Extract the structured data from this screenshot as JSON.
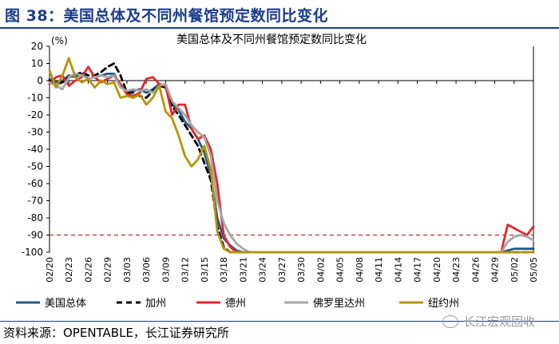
{
  "figure_title": "图 38：美国总体及不同州餐馆预定数同比变化",
  "source": "资料来源：OPENTABLE，长江证券研究所",
  "watermark": "长江宏观固收",
  "chart_data": {
    "type": "line",
    "title": "美国总体及不同州餐馆预定数同比变化",
    "ylabel": "(%)",
    "ylim": [
      -100,
      20
    ],
    "yticks": [
      20,
      10,
      0,
      -10,
      -20,
      -30,
      -40,
      -50,
      -60,
      -70,
      -80,
      -90,
      -100
    ],
    "reference_line": {
      "value": -90,
      "color": "#c0282d",
      "style": "dashed"
    },
    "x_count": 76,
    "x_tick_labels": [
      {
        "i": 0,
        "label": "02/20"
      },
      {
        "i": 3,
        "label": "02/23"
      },
      {
        "i": 6,
        "label": "02/26"
      },
      {
        "i": 9,
        "label": "02/29"
      },
      {
        "i": 12,
        "label": "03/03"
      },
      {
        "i": 15,
        "label": "03/06"
      },
      {
        "i": 18,
        "label": "03/09"
      },
      {
        "i": 21,
        "label": "03/12"
      },
      {
        "i": 24,
        "label": "03/15"
      },
      {
        "i": 27,
        "label": "03/18"
      },
      {
        "i": 30,
        "label": "03/21"
      },
      {
        "i": 33,
        "label": "03/24"
      },
      {
        "i": 36,
        "label": "03/27"
      },
      {
        "i": 39,
        "label": "03/30"
      },
      {
        "i": 42,
        "label": "04/02"
      },
      {
        "i": 45,
        "label": "04/05"
      },
      {
        "i": 48,
        "label": "04/08"
      },
      {
        "i": 51,
        "label": "04/11"
      },
      {
        "i": 54,
        "label": "04/14"
      },
      {
        "i": 57,
        "label": "04/17"
      },
      {
        "i": 60,
        "label": "04/20"
      },
      {
        "i": 63,
        "label": "04/23"
      },
      {
        "i": 66,
        "label": "04/26"
      },
      {
        "i": 69,
        "label": "04/29"
      },
      {
        "i": 72,
        "label": "05/02"
      },
      {
        "i": 75,
        "label": "05/05"
      }
    ],
    "series": [
      {
        "name": "美国总体",
        "color": "#1f5b8c",
        "dash": "",
        "points": [
          [
            0,
            1
          ],
          [
            1,
            -1
          ],
          [
            2,
            0
          ],
          [
            3,
            3
          ],
          [
            4,
            2
          ],
          [
            5,
            4
          ],
          [
            6,
            1
          ],
          [
            7,
            2
          ],
          [
            8,
            3
          ],
          [
            9,
            4
          ],
          [
            10,
            4
          ],
          [
            11,
            -3
          ],
          [
            12,
            -7
          ],
          [
            13,
            -6
          ],
          [
            14,
            -5
          ],
          [
            15,
            -7
          ],
          [
            16,
            -5
          ],
          [
            17,
            -2
          ],
          [
            18,
            -4
          ],
          [
            19,
            -14
          ],
          [
            20,
            -17
          ],
          [
            21,
            -24
          ],
          [
            22,
            -28
          ],
          [
            23,
            -34
          ],
          [
            24,
            -42
          ],
          [
            25,
            -55
          ],
          [
            26,
            -80
          ],
          [
            27,
            -92
          ],
          [
            28,
            -96
          ],
          [
            29,
            -99
          ],
          [
            30,
            -100
          ],
          [
            70,
            -100
          ],
          [
            71,
            -99
          ],
          [
            72,
            -98
          ],
          [
            73,
            -98
          ],
          [
            74,
            -98
          ],
          [
            75,
            -98
          ]
        ]
      },
      {
        "name": "加州",
        "color": "#000000",
        "dash": "7 5",
        "points": [
          [
            0,
            0
          ],
          [
            1,
            -2
          ],
          [
            2,
            -1
          ],
          [
            3,
            2
          ],
          [
            4,
            3
          ],
          [
            5,
            5
          ],
          [
            6,
            3
          ],
          [
            7,
            3
          ],
          [
            8,
            5
          ],
          [
            9,
            8
          ],
          [
            10,
            10
          ],
          [
            11,
            3
          ],
          [
            12,
            -7
          ],
          [
            13,
            -7
          ],
          [
            14,
            -9
          ],
          [
            15,
            -10
          ],
          [
            16,
            -6
          ],
          [
            17,
            -3
          ],
          [
            18,
            -4
          ],
          [
            19,
            -15
          ],
          [
            20,
            -20
          ],
          [
            21,
            -26
          ],
          [
            22,
            -32
          ],
          [
            23,
            -38
          ],
          [
            24,
            -48
          ],
          [
            25,
            -58
          ],
          [
            26,
            -85
          ],
          [
            27,
            -97
          ],
          [
            28,
            -100
          ],
          [
            75,
            -100
          ]
        ]
      },
      {
        "name": "德州",
        "color": "#e8262a",
        "dash": "",
        "points": [
          [
            0,
            -2
          ],
          [
            1,
            2
          ],
          [
            2,
            3
          ],
          [
            3,
            -3
          ],
          [
            4,
            0
          ],
          [
            5,
            2
          ],
          [
            6,
            8
          ],
          [
            7,
            2
          ],
          [
            8,
            -1
          ],
          [
            9,
            1
          ],
          [
            10,
            3
          ],
          [
            11,
            -2
          ],
          [
            12,
            -8
          ],
          [
            13,
            -9
          ],
          [
            14,
            -7
          ],
          [
            15,
            1
          ],
          [
            16,
            2
          ],
          [
            17,
            -2
          ],
          [
            18,
            -3
          ],
          [
            19,
            -20
          ],
          [
            20,
            -14
          ],
          [
            21,
            -14
          ],
          [
            22,
            -28
          ],
          [
            23,
            -34
          ],
          [
            24,
            -32
          ],
          [
            25,
            -40
          ],
          [
            26,
            -60
          ],
          [
            27,
            -90
          ],
          [
            28,
            -97
          ],
          [
            29,
            -100
          ],
          [
            70,
            -100
          ],
          [
            71,
            -84
          ],
          [
            72,
            -86
          ],
          [
            73,
            -88
          ],
          [
            74,
            -90
          ],
          [
            75,
            -85
          ]
        ]
      },
      {
        "name": "佛罗里达州",
        "color": "#a6a6a6",
        "dash": "",
        "points": [
          [
            0,
            -1
          ],
          [
            1,
            -3
          ],
          [
            2,
            -5
          ],
          [
            3,
            2
          ],
          [
            4,
            4
          ],
          [
            5,
            3
          ],
          [
            6,
            1
          ],
          [
            7,
            2
          ],
          [
            8,
            3
          ],
          [
            9,
            2
          ],
          [
            10,
            3
          ],
          [
            11,
            -4
          ],
          [
            12,
            -6
          ],
          [
            13,
            -5
          ],
          [
            14,
            -6
          ],
          [
            15,
            -5
          ],
          [
            16,
            -7
          ],
          [
            17,
            -3
          ],
          [
            18,
            -2
          ],
          [
            19,
            -12
          ],
          [
            20,
            -16
          ],
          [
            21,
            -20
          ],
          [
            22,
            -26
          ],
          [
            23,
            -30
          ],
          [
            24,
            -33
          ],
          [
            25,
            -44
          ],
          [
            26,
            -70
          ],
          [
            27,
            -83
          ],
          [
            28,
            -90
          ],
          [
            29,
            -95
          ],
          [
            30,
            -98
          ],
          [
            31,
            -100
          ],
          [
            70,
            -100
          ],
          [
            71,
            -94
          ],
          [
            72,
            -91
          ],
          [
            73,
            -90
          ],
          [
            74,
            -91
          ],
          [
            75,
            -93
          ]
        ]
      },
      {
        "name": "纽约州",
        "color": "#b8930a",
        "dash": "",
        "points": [
          [
            0,
            6
          ],
          [
            1,
            -4
          ],
          [
            2,
            3
          ],
          [
            3,
            13
          ],
          [
            4,
            2
          ],
          [
            5,
            -1
          ],
          [
            6,
            1
          ],
          [
            7,
            -4
          ],
          [
            8,
            0
          ],
          [
            9,
            -2
          ],
          [
            10,
            -1
          ],
          [
            11,
            -10
          ],
          [
            12,
            -9
          ],
          [
            13,
            -10
          ],
          [
            14,
            -8
          ],
          [
            15,
            -14
          ],
          [
            16,
            -10
          ],
          [
            17,
            -3
          ],
          [
            18,
            -18
          ],
          [
            19,
            -22
          ],
          [
            20,
            -32
          ],
          [
            21,
            -44
          ],
          [
            22,
            -50
          ],
          [
            23,
            -46
          ],
          [
            24,
            -38
          ],
          [
            25,
            -52
          ],
          [
            26,
            -88
          ],
          [
            27,
            -98
          ],
          [
            28,
            -100
          ],
          [
            75,
            -100
          ]
        ]
      }
    ]
  }
}
